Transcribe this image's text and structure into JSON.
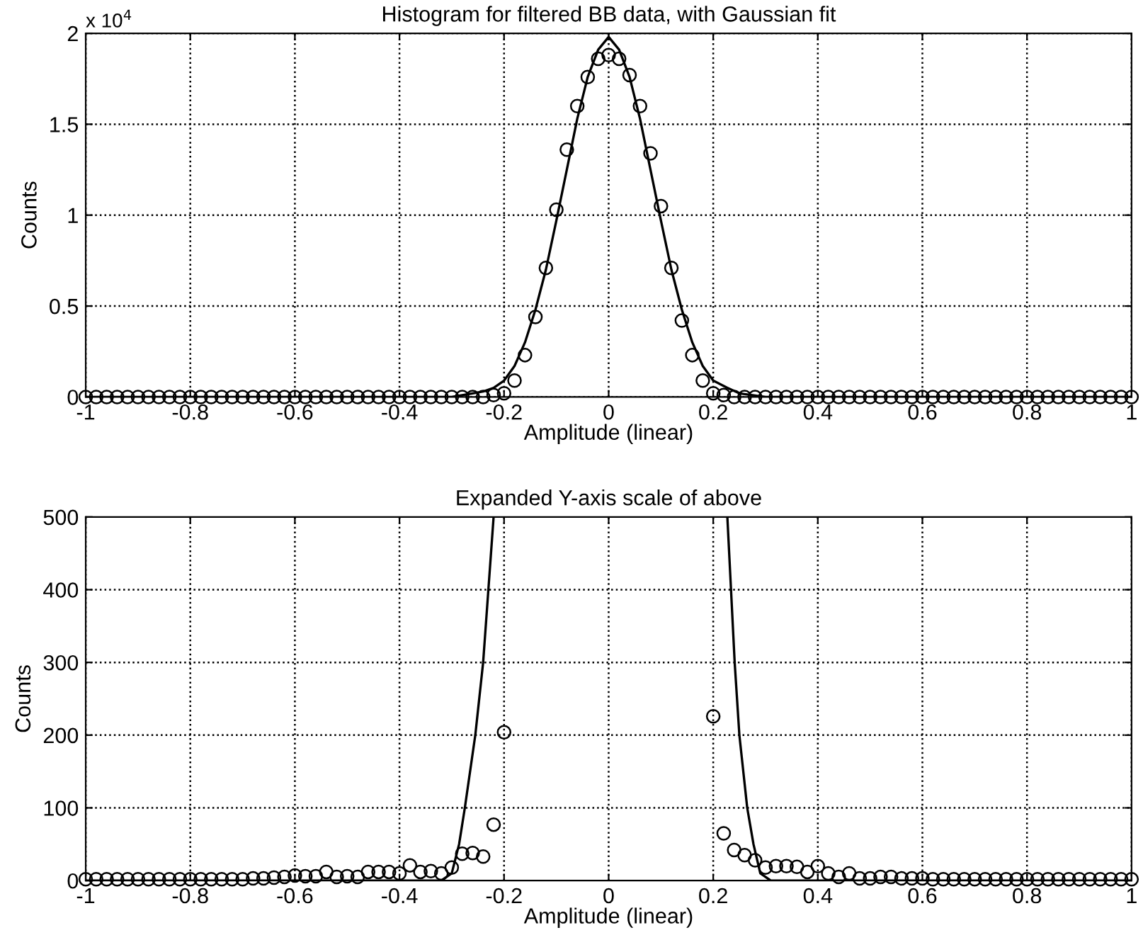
{
  "chart_data": [
    {
      "type": "scatter",
      "title": "Histogram for filtered BB data, with Gaussian fit",
      "xlabel": "Amplitude (linear)",
      "ylabel": "Counts",
      "annotations": [
        "x 10$^{4}$"
      ],
      "xlim": [
        -1,
        1
      ],
      "xticks": [
        -1,
        -0.8,
        -0.6,
        -0.4,
        -0.2,
        0,
        0.2,
        0.4,
        0.6,
        0.8,
        1
      ],
      "ylim": [
        0,
        2
      ],
      "yticks": [
        0,
        0.5,
        1,
        1.5,
        2
      ],
      "grid": true,
      "legend": false,
      "series": [
        {
          "color": "#000000",
          "marker": "circle",
          "x": [
            -1,
            -0.98,
            -0.96,
            -0.94,
            -0.92,
            -0.9,
            -0.88,
            -0.86,
            -0.84,
            -0.82,
            -0.8,
            -0.78,
            -0.76,
            -0.74,
            -0.72,
            -0.7,
            -0.68,
            -0.66,
            -0.64,
            -0.62,
            -0.6,
            -0.58,
            -0.56,
            -0.54,
            -0.52,
            -0.5,
            -0.48,
            -0.46,
            -0.44,
            -0.42,
            -0.4,
            -0.38,
            -0.36,
            -0.34,
            -0.32,
            -0.3,
            -0.28,
            -0.26,
            -0.24,
            -0.22,
            -0.2,
            -0.18,
            -0.16,
            -0.14,
            -0.12,
            -0.1,
            -0.08,
            -0.06,
            -0.04,
            -0.02,
            0,
            0.02,
            0.04,
            0.06,
            0.08,
            0.1,
            0.12,
            0.14,
            0.16,
            0.18,
            0.2,
            0.22,
            0.24,
            0.26,
            0.28,
            0.3,
            0.32,
            0.34,
            0.36,
            0.38,
            0.4,
            0.42,
            0.44,
            0.46,
            0.48,
            0.5,
            0.52,
            0.54,
            0.56,
            0.58,
            0.6,
            0.62,
            0.64,
            0.66,
            0.68,
            0.7,
            0.72,
            0.74,
            0.76,
            0.78,
            0.8,
            0.82,
            0.84,
            0.86,
            0.88,
            0.9,
            0.92,
            0.94,
            0.96,
            0.98,
            1
          ],
          "values": [
            0,
            0,
            0,
            0,
            0,
            0,
            0,
            0,
            0,
            0,
            0,
            0,
            0,
            0,
            0,
            0,
            0,
            0,
            0,
            0,
            0,
            0,
            0,
            0,
            0,
            0,
            0,
            0,
            0,
            0,
            0,
            0,
            0,
            0,
            0,
            0,
            0,
            0,
            0,
            0.01,
            0.02,
            0.09,
            0.23,
            0.44,
            0.71,
            1.03,
            1.36,
            1.6,
            1.76,
            1.86,
            1.88,
            1.86,
            1.77,
            1.6,
            1.34,
            1.05,
            0.71,
            0.42,
            0.23,
            0.09,
            0.02,
            0.01,
            0,
            0,
            0,
            0,
            0,
            0,
            0,
            0,
            0,
            0,
            0,
            0,
            0,
            0,
            0,
            0,
            0,
            0,
            0,
            0,
            0,
            0,
            0,
            0,
            0,
            0,
            0,
            0,
            0,
            0,
            0,
            0,
            0,
            0,
            0,
            0,
            0,
            0,
            0
          ]
        },
        {
          "type": "line",
          "color": "#000000",
          "marker": "none",
          "x": [
            -1,
            -0.3,
            -0.26,
            -0.24,
            -0.22,
            -0.2,
            -0.18,
            -0.16,
            -0.14,
            -0.12,
            -0.1,
            -0.08,
            -0.06,
            -0.04,
            -0.02,
            0,
            0.02,
            0.04,
            0.06,
            0.08,
            0.1,
            0.12,
            0.14,
            0.16,
            0.18,
            0.2,
            0.227,
            0.25,
            0.3,
            1
          ],
          "values": [
            0,
            0,
            0.02,
            0.03,
            0.05,
            0.09,
            0.17,
            0.3,
            0.48,
            0.7,
            0.97,
            1.25,
            1.53,
            1.76,
            1.91,
            1.98,
            1.91,
            1.76,
            1.53,
            1.25,
            0.97,
            0.7,
            0.48,
            0.3,
            0.17,
            0.09,
            0.05,
            0.02,
            0,
            0
          ]
        }
      ]
    },
    {
      "type": "scatter",
      "title": "Expanded Y-axis scale of above",
      "xlabel": "Amplitude (linear)",
      "ylabel": "Counts",
      "xlim": [
        -1,
        1
      ],
      "xticks": [
        -1,
        -0.8,
        -0.6,
        -0.4,
        -0.2,
        0,
        0.2,
        0.4,
        0.6,
        0.8,
        1
      ],
      "ylim": [
        0,
        500
      ],
      "yticks": [
        0,
        100,
        200,
        300,
        400,
        500
      ],
      "grid": true,
      "legend": false,
      "series": [
        {
          "color": "#000000",
          "marker": "circle",
          "x": [
            -1,
            -0.98,
            -0.96,
            -0.94,
            -0.92,
            -0.9,
            -0.88,
            -0.86,
            -0.84,
            -0.82,
            -0.8,
            -0.78,
            -0.76,
            -0.74,
            -0.72,
            -0.7,
            -0.68,
            -0.66,
            -0.64,
            -0.62,
            -0.6,
            -0.58,
            -0.56,
            -0.54,
            -0.52,
            -0.5,
            -0.48,
            -0.46,
            -0.44,
            -0.42,
            -0.4,
            -0.38,
            -0.36,
            -0.34,
            -0.32,
            -0.3,
            -0.28,
            -0.26,
            -0.24,
            -0.22,
            -0.2,
            -0.18,
            -0.16,
            -0.14,
            -0.12,
            -0.1,
            -0.08,
            -0.06,
            -0.04,
            -0.02,
            0,
            0.02,
            0.04,
            0.06,
            0.08,
            0.1,
            0.12,
            0.14,
            0.16,
            0.18,
            0.2,
            0.22,
            0.24,
            0.26,
            0.28,
            0.3,
            0.32,
            0.34,
            0.36,
            0.38,
            0.4,
            0.42,
            0.44,
            0.46,
            0.48,
            0.5,
            0.52,
            0.54,
            0.56,
            0.58,
            0.6,
            0.62,
            0.64,
            0.66,
            0.68,
            0.7,
            0.72,
            0.74,
            0.76,
            0.78,
            0.8,
            0.82,
            0.84,
            0.86,
            0.88,
            0.9,
            0.92,
            0.94,
            0.96,
            0.98,
            1
          ],
          "values": [
            2,
            2,
            2,
            2,
            2,
            2,
            2,
            2,
            2,
            2,
            2,
            2,
            2,
            2,
            2,
            2,
            3,
            3,
            4,
            5,
            7,
            6,
            6,
            12,
            5,
            6,
            5,
            12,
            12,
            12,
            10,
            21,
            12,
            13,
            10,
            18,
            37,
            38,
            33,
            77,
            204,
            null,
            null,
            null,
            null,
            null,
            null,
            null,
            null,
            null,
            null,
            null,
            null,
            null,
            null,
            null,
            null,
            null,
            null,
            null,
            226,
            65,
            42,
            35,
            28,
            18,
            20,
            20,
            19,
            12,
            20,
            10,
            5,
            10,
            3,
            3,
            5,
            5,
            3,
            3,
            3,
            2,
            2,
            2,
            2,
            2,
            2,
            2,
            2,
            2,
            2,
            2,
            2,
            2,
            2,
            2,
            2,
            2,
            2,
            2,
            2
          ]
        },
        {
          "type": "line",
          "color": "#000000",
          "marker": "none",
          "x": [
            -1,
            -0.32,
            -0.3,
            -0.286,
            -0.275,
            -0.255,
            -0.24,
            -0.23,
            -0.22,
            0,
            0.227,
            0.234,
            0.241,
            0.25,
            0.265,
            0.277,
            0.29,
            0.31,
            1
          ],
          "values": [
            0,
            0,
            10,
            50,
            100,
            200,
            300,
            400,
            500,
            null,
            500,
            400,
            300,
            200,
            100,
            50,
            10,
            0,
            0
          ]
        }
      ]
    }
  ]
}
